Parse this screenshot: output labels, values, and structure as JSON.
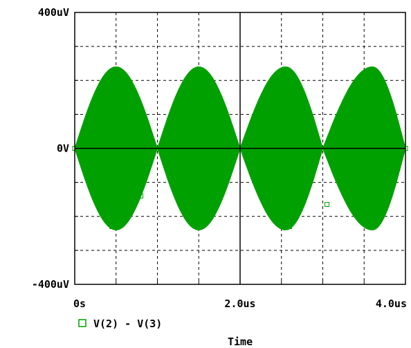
{
  "chart_data": {
    "type": "area",
    "title": "",
    "xlabel": "Time",
    "ylabel": "",
    "xlim": [
      0,
      4.0
    ],
    "x_unit": "us",
    "ylim": [
      -400,
      400
    ],
    "y_unit": "uV",
    "x_ticks": [
      0,
      2.0,
      4.0
    ],
    "x_tick_labels": [
      "0s",
      "2.0us",
      "4.0us"
    ],
    "y_ticks": [
      -400,
      0,
      400
    ],
    "y_tick_labels": [
      "-400uV",
      "0V",
      "400uV"
    ],
    "grid": true,
    "legend_position": "bottom-left",
    "series": [
      {
        "name": "V(2) - V(3)",
        "color": "#00A000",
        "description_type": "amplitude-modulated carrier envelope",
        "envelope_peaks_x": [
          0.5,
          1.5,
          2.55,
          3.6
        ],
        "envelope_zeros_x": [
          0,
          1.0,
          2.0,
          3.0,
          4.0
        ],
        "envelope_peak_y": 240,
        "envelope_trough_y": -240
      }
    ]
  }
}
